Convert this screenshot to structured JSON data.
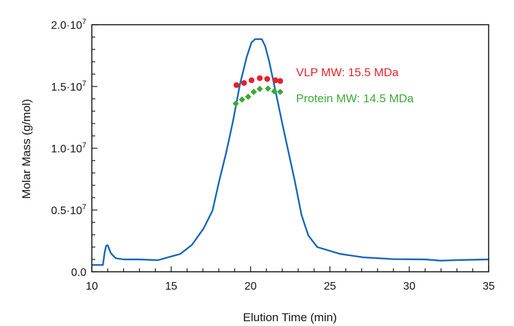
{
  "chart_data": {
    "type": "line",
    "title": "",
    "xlabel": "Elution Time (min)",
    "ylabel": "Molar Mass (g/mol)",
    "xlim": [
      10,
      35
    ],
    "ylim": [
      0,
      20000000
    ],
    "x_ticks": [
      10,
      15,
      20,
      25,
      30,
      35
    ],
    "x_tick_labels": [
      "10",
      "15",
      "20",
      "25",
      "30",
      "35"
    ],
    "y_ticks": [
      0,
      5000000,
      10000000,
      15000000,
      20000000
    ],
    "y_tick_labels": [
      {
        "mantissa": "0.0",
        "exp": ""
      },
      {
        "mantissa": "0.5·10",
        "exp": "7"
      },
      {
        "mantissa": "1.0·10",
        "exp": "7"
      },
      {
        "mantissa": "1.5·10",
        "exp": "7"
      },
      {
        "mantissa": "2.0·10",
        "exp": "7"
      }
    ],
    "grid": false,
    "series": [
      {
        "kind": "line",
        "color": "#1565b8",
        "x": [
          10,
          10.7,
          10.8,
          10.9,
          11.0,
          11.2,
          11.5,
          12,
          13,
          14.15,
          15.57,
          16.3,
          17.04,
          17.6,
          18.03,
          18.46,
          18.89,
          19.33,
          19.76,
          20.06,
          20.28,
          20.71,
          20.92,
          21.18,
          21.61,
          22.0,
          22.35,
          22.78,
          23.21,
          23.64,
          24.2,
          25.67,
          27.1,
          29,
          31,
          32,
          33,
          35
        ],
        "y": [
          550000,
          550000,
          1500000,
          2100000,
          2150000,
          1500000,
          1100000,
          1000000,
          1000000,
          940000,
          1440000,
          2170000,
          3500000,
          4940000,
          7390000,
          9610000,
          12170000,
          15170000,
          17390000,
          18560000,
          18830000,
          18830000,
          18280000,
          17000000,
          14390000,
          12000000,
          9940000,
          7390000,
          4610000,
          2940000,
          2000000,
          1440000,
          1170000,
          1020000,
          1000000,
          900000,
          950000,
          1000000
        ]
      },
      {
        "kind": "scatter",
        "marker": "circle",
        "color": "#e8202a",
        "x": [
          19.11,
          19.59,
          20.06,
          20.58,
          21.05,
          21.57,
          21.87
        ],
        "y": [
          15110000,
          15280000,
          15500000,
          15670000,
          15610000,
          15500000,
          15440000
        ]
      },
      {
        "kind": "scatter",
        "marker": "diamond",
        "color": "#3aaa35",
        "x": [
          19.07,
          19.46,
          19.85,
          20.2,
          20.58,
          21.1,
          21.49,
          21.87
        ],
        "y": [
          13610000,
          13940000,
          14170000,
          14560000,
          14800000,
          14830000,
          14610000,
          14560000
        ]
      }
    ],
    "annotations": [
      {
        "text": "VLP MW: 15.5 MDa",
        "color": "#e8202a"
      },
      {
        "text": "Protein MW: 14.5 MDa",
        "color": "#3aaa35"
      }
    ]
  }
}
